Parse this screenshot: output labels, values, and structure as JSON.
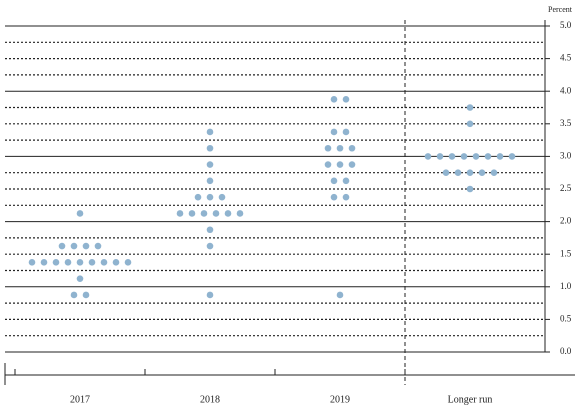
{
  "chart_data": {
    "type": "dot",
    "y_axis_label": "Percent",
    "categories": [
      "2017",
      "2018",
      "2019",
      "Longer run"
    ],
    "values": [
      [
        2.125,
        1.625,
        1.625,
        1.625,
        1.625,
        1.375,
        1.375,
        1.375,
        1.375,
        1.375,
        1.375,
        1.375,
        1.375,
        1.375,
        1.125,
        0.875,
        0.875
      ],
      [
        3.375,
        3.125,
        2.875,
        2.625,
        2.375,
        2.375,
        2.375,
        2.125,
        2.125,
        2.125,
        2.125,
        2.125,
        2.125,
        1.875,
        1.625,
        0.875
      ],
      [
        3.875,
        3.875,
        3.375,
        3.375,
        3.125,
        3.125,
        3.125,
        2.875,
        2.875,
        2.875,
        2.625,
        2.625,
        2.375,
        2.375,
        0.875
      ],
      [
        3.75,
        3.5,
        3.0,
        3.0,
        3.0,
        3.0,
        3.0,
        3.0,
        3.0,
        3.0,
        2.75,
        2.75,
        2.75,
        2.75,
        2.75,
        2.5
      ]
    ],
    "color": "#8fb3cf",
    "ylim": [
      0,
      5
    ],
    "yticks": [
      {
        "value": 0,
        "label": "0.0"
      },
      {
        "value": 0.5,
        "label": "0.5"
      },
      {
        "value": 1,
        "label": "1.0"
      },
      {
        "value": 1.5,
        "label": "1.5"
      },
      {
        "value": 2,
        "label": "2.0"
      },
      {
        "value": 2.5,
        "label": "2.5"
      },
      {
        "value": 3,
        "label": "3.0"
      },
      {
        "value": 3.5,
        "label": "3.5"
      },
      {
        "value": 4,
        "label": "4.0"
      },
      {
        "value": 4.5,
        "label": "4.5"
      },
      {
        "value": 5,
        "label": "5.0"
      }
    ],
    "grid": true
  }
}
